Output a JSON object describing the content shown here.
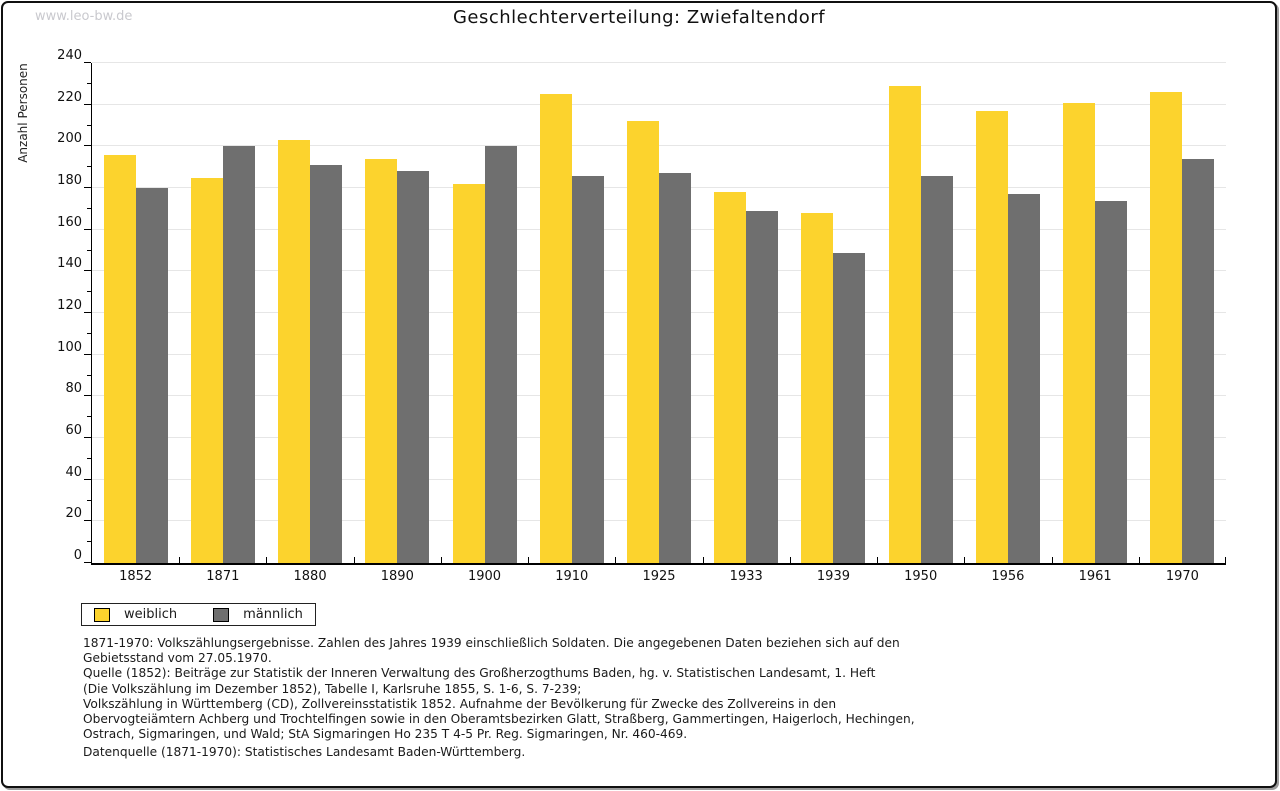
{
  "watermark": "www.leo-bw.de",
  "title": "Geschlechterverteilung: Zwiefaltendorf",
  "chart_data": {
    "type": "bar",
    "title": "Geschlechterverteilung: Zwiefaltendorf",
    "categories": [
      "1852",
      "1871",
      "1880",
      "1890",
      "1900",
      "1910",
      "1925",
      "1933",
      "1939",
      "1950",
      "1956",
      "1961",
      "1970"
    ],
    "series": [
      {
        "name": "weiblich",
        "color": "#FCD32D",
        "values": [
          196,
          185,
          203,
          194,
          182,
          225,
          212,
          178,
          168,
          229,
          217,
          221,
          226
        ]
      },
      {
        "name": "männlich",
        "color": "#6F6F6F",
        "values": [
          180,
          200,
          191,
          188,
          200,
          186,
          187,
          169,
          149,
          186,
          177,
          174,
          194
        ]
      }
    ],
    "xlabel": "",
    "ylabel": "Anzahl Personen",
    "ylim": [
      0,
      240
    ],
    "ytick_major_step": 20,
    "ytick_minor_step": 10,
    "grid": "horizontal-light",
    "legend_position": "bottom-left"
  },
  "footnotes": [
    "1871-1970: Volkszählungsergebnisse. Zahlen des Jahres 1939 einschließlich Soldaten. Die angegebenen Daten beziehen sich auf den",
    "Gebietsstand vom 27.05.1970.",
    "Quelle (1852): Beiträge zur Statistik der Inneren Verwaltung des Großherzogthums Baden, hg. v. Statistischen Landesamt, 1. Heft",
    "(Die Volkszählung im Dezember 1852), Tabelle I, Karlsruhe 1855, S. 1-6, S. 7-239;",
    "Volkszählung in Württemberg (CD), Zollvereinsstatistik 1852. Aufnahme der Bevölkerung für Zwecke des Zollvereins in den",
    "Obervogteiämtern Achberg und Trochtelfingen sowie in den Oberamtsbezirken Glatt, Straßberg, Gammertingen, Haigerloch, Hechingen,",
    "Ostrach, Sigmaringen, und Wald; StA Sigmaringen Ho 235 T 4-5 Pr. Reg. Sigmaringen, Nr. 460-469."
  ],
  "datasource": "Datenquelle (1871-1970): Statistisches Landesamt Baden-Württemberg."
}
